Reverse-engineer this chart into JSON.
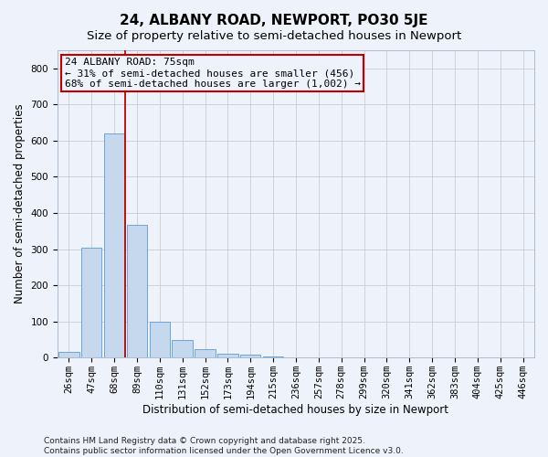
{
  "title": "24, ALBANY ROAD, NEWPORT, PO30 5JE",
  "subtitle": "Size of property relative to semi-detached houses in Newport",
  "xlabel": "Distribution of semi-detached houses by size in Newport",
  "ylabel": "Number of semi-detached properties",
  "bar_labels": [
    "26sqm",
    "47sqm",
    "68sqm",
    "89sqm",
    "110sqm",
    "131sqm",
    "152sqm",
    "173sqm",
    "194sqm",
    "215sqm",
    "236sqm",
    "257sqm",
    "278sqm",
    "299sqm",
    "320sqm",
    "341sqm",
    "362sqm",
    "383sqm",
    "404sqm",
    "425sqm",
    "446sqm"
  ],
  "bar_values": [
    15,
    303,
    619,
    368,
    99,
    50,
    23,
    11,
    8,
    3,
    2,
    1,
    0,
    0,
    0,
    0,
    0,
    0,
    0,
    0,
    0
  ],
  "bar_color": "#c5d8ed",
  "bar_edge_color": "#5b9bd5",
  "vline_color": "#c00000",
  "vline_bar_index": 2,
  "annotation_text_line1": "24 ALBANY ROAD: 75sqm",
  "annotation_text_line2": "← 31% of semi-detached houses are smaller (456)",
  "annotation_text_line3": "68% of semi-detached houses are larger (1,002) →",
  "annotation_box_color": "#c00000",
  "ylim": [
    0,
    850
  ],
  "yticks": [
    0,
    100,
    200,
    300,
    400,
    500,
    600,
    700,
    800
  ],
  "grid_color": "#cccccc",
  "background_color": "#eef2fa",
  "footer_text": "Contains HM Land Registry data © Crown copyright and database right 2025.\nContains public sector information licensed under the Open Government Licence v3.0.",
  "title_fontsize": 11,
  "subtitle_fontsize": 9.5,
  "axis_label_fontsize": 8.5,
  "tick_fontsize": 7.5,
  "annotation_fontsize": 8,
  "footer_fontsize": 6.5
}
